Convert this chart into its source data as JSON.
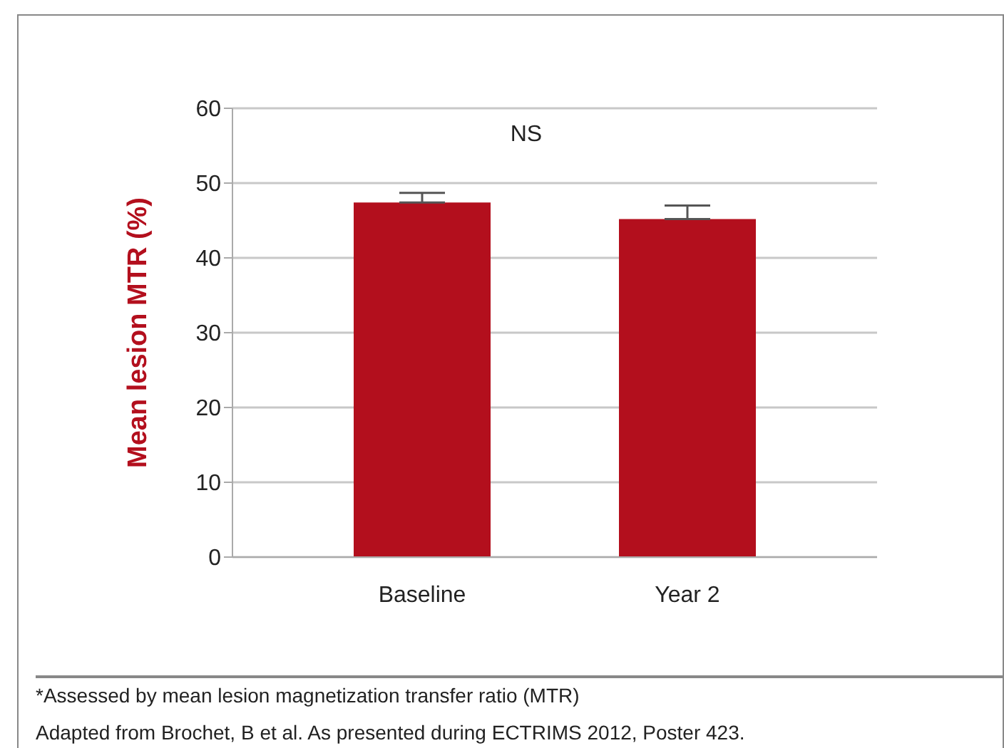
{
  "chart_data": {
    "type": "bar",
    "ylabel": "Mean lesion MTR (%)",
    "categories": [
      "Baseline",
      "Year 2"
    ],
    "values": [
      47.4,
      45.2
    ],
    "errors": [
      [
        47.4,
        48.7
      ],
      [
        45.2,
        47.0
      ]
    ],
    "color": "#b30f1d",
    "ylim": [
      0,
      60
    ],
    "yticks": [
      0,
      10,
      20,
      30,
      40,
      50,
      60
    ],
    "grid": "y",
    "legend": false,
    "annotations": [
      "NS",
      "*Assessed by mean lesion magnetization transfer ratio (MTR)",
      "Adapted from Brochet, B et al. As presented during ECTRIMS 2012, Poster 423."
    ]
  }
}
